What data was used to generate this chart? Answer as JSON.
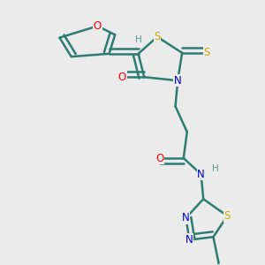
{
  "background_color": "#ebebeb",
  "bond_color": "#2d7d6e",
  "bond_width": 1.8,
  "atom_colors": {
    "O": "#ff0000",
    "S": "#ccaa00",
    "N": "#0000cc",
    "H": "#5a9a90",
    "C": "#2d7d6e"
  },
  "font_size": 8.5,
  "fig_size": [
    3.0,
    3.0
  ],
  "dpi": 100
}
